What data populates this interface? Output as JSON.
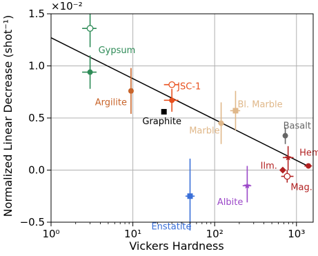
{
  "chart_data": {
    "type": "scatter",
    "xlabel": "Vickers Hardness",
    "ylabel": "Normalized Linear Decrease (shot⁻¹)",
    "y_multiplier": "×10⁻²",
    "xscale": "log",
    "xlim": [
      1,
      1600
    ],
    "ylim": [
      -0.5,
      1.5
    ],
    "grid": true,
    "x_ticks": [
      {
        "value": 1,
        "label": "10⁰"
      },
      {
        "value": 10,
        "label": "10¹"
      },
      {
        "value": 100,
        "label": "10²"
      },
      {
        "value": 1000,
        "label": "10³"
      }
    ],
    "y_ticks": [
      {
        "value": -0.5,
        "label": "−0.5"
      },
      {
        "value": 0.0,
        "label": "0.0"
      },
      {
        "value": 0.5,
        "label": "0.5"
      },
      {
        "value": 1.0,
        "label": "1.0"
      },
      {
        "value": 1.5,
        "label": "1.5"
      }
    ],
    "fit_line": {
      "x": [
        1,
        1450
      ],
      "y": [
        1.27,
        0.03
      ],
      "color": "#000000"
    },
    "points": [
      {
        "name": "Gypsum",
        "label": "Gypsum",
        "x": 3.0,
        "y": 0.94,
        "xlo": 2.4,
        "xhi": 3.6,
        "ylo": 0.78,
        "yhi": 1.1,
        "color": "#2e8b57",
        "marker": "filled",
        "show_label": false
      },
      {
        "name": "Gypsum (open)",
        "label": "Gypsum",
        "x": 3.0,
        "y": 1.36,
        "xlo": 2.4,
        "xhi": 3.6,
        "ylo": 1.18,
        "yhi": 1.5,
        "color": "#2e8b57",
        "marker": "open",
        "show_label": true
      },
      {
        "name": "Argilite",
        "label": "Argilite",
        "x": 9.5,
        "y": 0.76,
        "xlo": 8.9,
        "xhi": 10.1,
        "ylo": 0.54,
        "yhi": 0.98,
        "color": "#c8642a",
        "marker": "filled",
        "show_label": true
      },
      {
        "name": "JSC-1",
        "label": "JSC-1",
        "x": 30,
        "y": 0.67,
        "xlo": 24,
        "xhi": 36,
        "ylo": 0.56,
        "yhi": 0.78,
        "color": "#e8501e",
        "marker": "filled",
        "show_label": false
      },
      {
        "name": "JSC-1 (open)",
        "label": "JSC-1",
        "x": 30,
        "y": 0.82,
        "xlo": 24,
        "xhi": 36,
        "ylo": 0.82,
        "yhi": 0.82,
        "color": "#e8501e",
        "marker": "open",
        "show_label": true
      },
      {
        "name": "Graphite",
        "label": "Graphite",
        "x": 24,
        "y": 0.56,
        "xlo": 24,
        "xhi": 24,
        "ylo": 0.56,
        "yhi": 0.56,
        "color": "#000000",
        "marker": "square",
        "show_label": true
      },
      {
        "name": "Enstatite",
        "label": "Enstatite",
        "x": 50,
        "y": -0.25,
        "xlo": 44,
        "xhi": 57,
        "ylo": -0.58,
        "yhi": 0.11,
        "color": "#3a6fd8",
        "marker": "square",
        "show_label": true
      },
      {
        "name": "Marble",
        "label": "Marble",
        "x": 120,
        "y": 0.45,
        "xlo": 110,
        "xhi": 130,
        "ylo": 0.25,
        "yhi": 0.65,
        "color": "#e0b88a",
        "marker": "filled",
        "show_label": true
      },
      {
        "name": "Bl. Marble",
        "label": "Bl. Marble",
        "x": 180,
        "y": 0.57,
        "xlo": 155,
        "xhi": 205,
        "ylo": 0.38,
        "yhi": 0.76,
        "color": "#e0b88a",
        "marker": "square",
        "show_label": true
      },
      {
        "name": "Albite",
        "label": "Albite",
        "x": 250,
        "y": -0.15,
        "xlo": 220,
        "xhi": 280,
        "ylo": -0.31,
        "yhi": 0.04,
        "color": "#9b48c8",
        "marker": "star",
        "show_label": true
      },
      {
        "name": "Basalt",
        "label": "Basalt",
        "x": 730,
        "y": 0.33,
        "xlo": 730,
        "xhi": 730,
        "ylo": 0.25,
        "yhi": 0.41,
        "color": "#666666",
        "marker": "filled",
        "show_label": true
      },
      {
        "name": "Ilm.",
        "label": "Ilm.",
        "x": 680,
        "y": 0.0,
        "xlo": 680,
        "xhi": 680,
        "ylo": 0.0,
        "yhi": 0.0,
        "color": "#b22222",
        "marker": "diamond",
        "show_label": true
      },
      {
        "name": "Mag.",
        "label": "Mag.",
        "x": 770,
        "y": -0.06,
        "xlo": 650,
        "xhi": 920,
        "ylo": -0.12,
        "yhi": 0.0,
        "color": "#b22222",
        "marker": "open",
        "show_label": true
      },
      {
        "name": "Hem. (star)",
        "label": "Hem.",
        "x": 790,
        "y": 0.12,
        "xlo": 680,
        "xhi": 920,
        "ylo": 0.0,
        "yhi": 0.23,
        "color": "#b22222",
        "marker": "star",
        "show_label": false
      },
      {
        "name": "Hem.",
        "label": "Hem.",
        "x": 1400,
        "y": 0.04,
        "xlo": 1250,
        "xhi": 1550,
        "ylo": 0.04,
        "yhi": 0.04,
        "color": "#b22222",
        "marker": "filled",
        "show_label": true
      }
    ]
  }
}
